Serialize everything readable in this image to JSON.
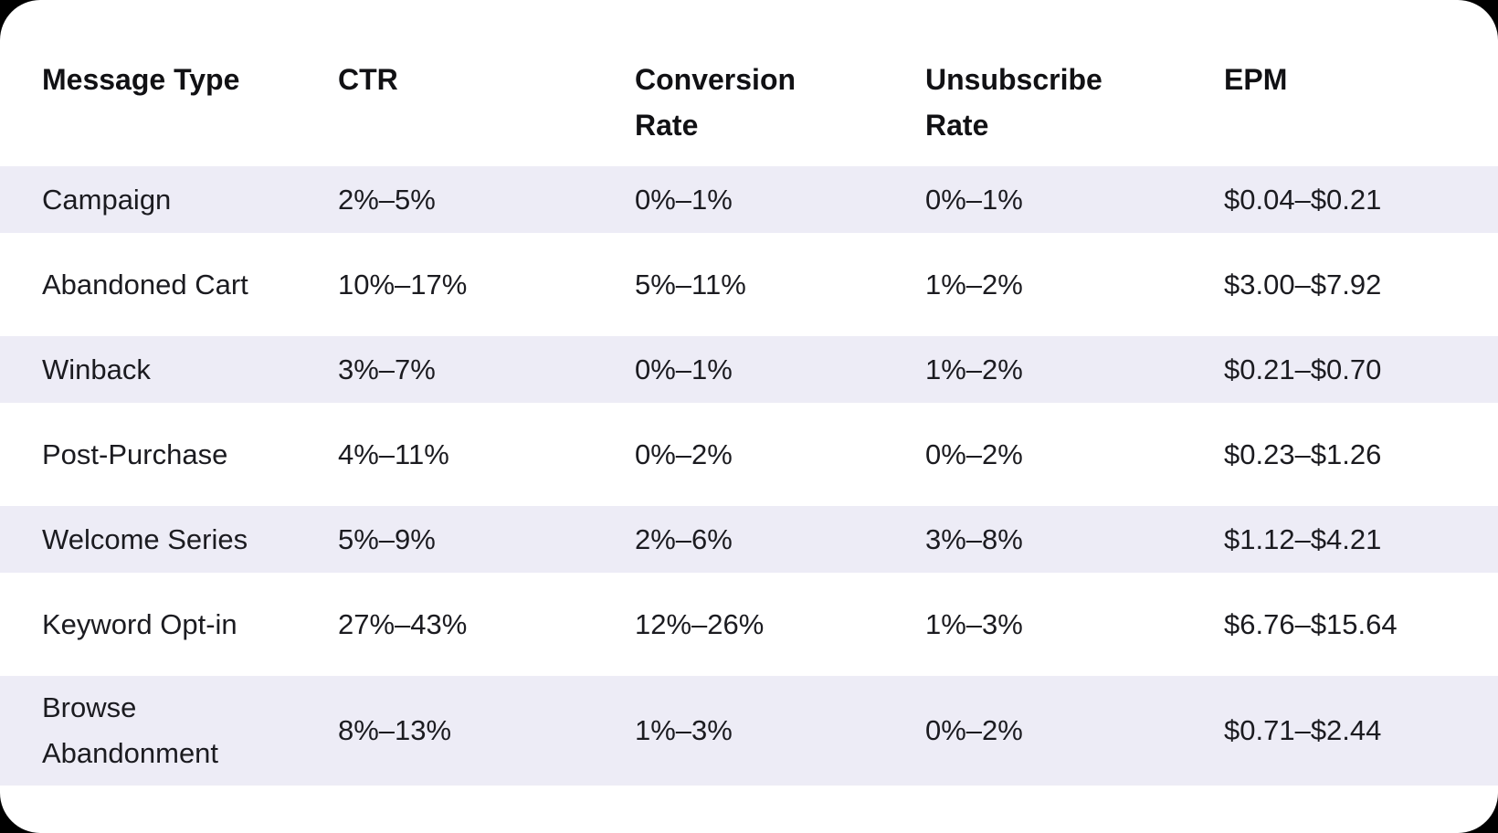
{
  "chart_data": {
    "type": "table",
    "title": "",
    "columns": [
      "Message Type",
      "CTR",
      "Conversion\nRate",
      "Unsubscribe\nRate",
      "EPM"
    ],
    "rows": [
      [
        "Campaign",
        "2%–5%",
        "0%–1%",
        "0%–1%",
        "$0.04–$0.21"
      ],
      [
        "Abandoned Cart",
        "10%–17%",
        "5%–11%",
        "1%–2%",
        "$3.00–$7.92"
      ],
      [
        "Winback",
        "3%–7%",
        "0%–1%",
        "1%–2%",
        "$0.21–$0.70"
      ],
      [
        "Post-Purchase",
        "4%–11%",
        "0%–2%",
        "0%–2%",
        "$0.23–$1.26"
      ],
      [
        "Welcome Series",
        "5%–9%",
        "2%–6%",
        "3%–8%",
        "$1.12–$4.21"
      ],
      [
        "Keyword Opt-in",
        "27%–43%",
        "12%–26%",
        "1%–3%",
        "$6.76–$15.64"
      ],
      [
        "Browse\nAbandonment",
        "8%–13%",
        "1%–3%",
        "0%–2%",
        "$0.71–$2.44"
      ]
    ],
    "layout": {
      "stripe_rows": "odd rows (1st, 3rd, 5th, 7th) shaded",
      "stripe_color": "#edecf6",
      "card_background": "#ffffff",
      "page_background": "#000000",
      "text_color": "#1b1b20",
      "header_text_color": "#111114"
    }
  }
}
